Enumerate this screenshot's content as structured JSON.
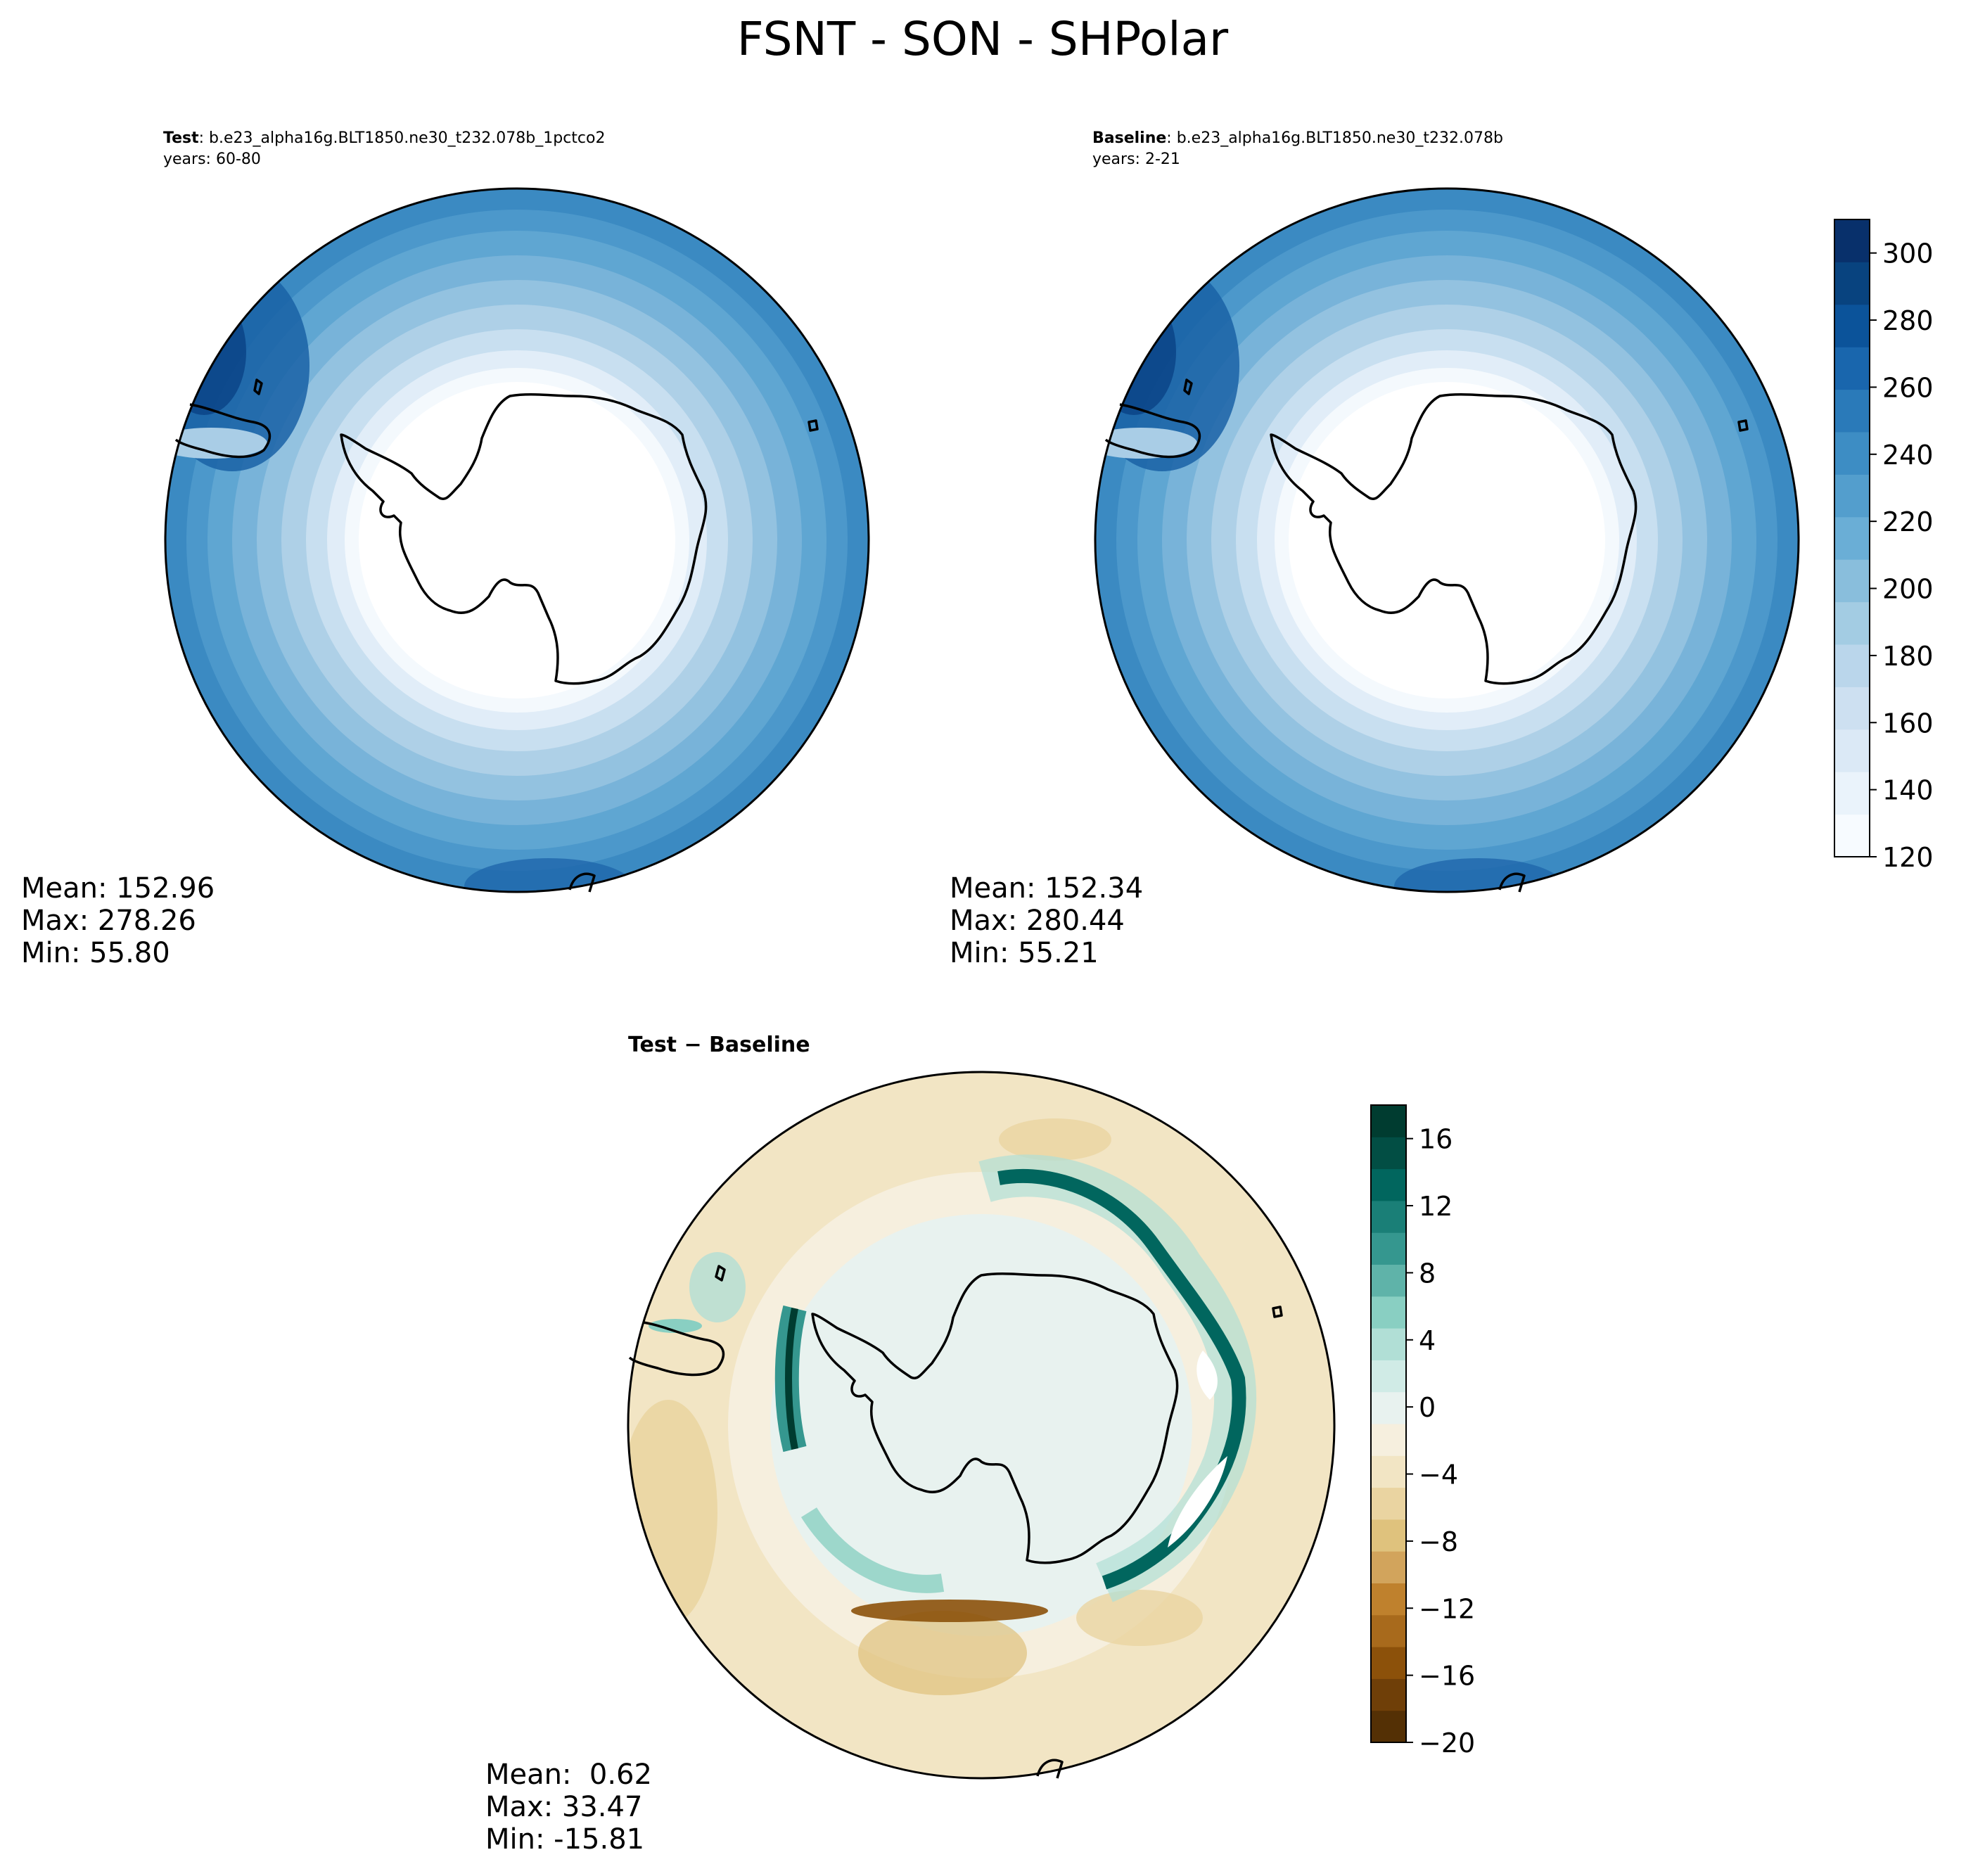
{
  "figure": {
    "title": "FSNT - SON - SHPolar"
  },
  "panels": [
    {
      "id": "test",
      "title_bold": "Test",
      "title_rest": ": b.e23_alpha16g.BLT1850.ne30_t232.078b_1pctco2",
      "years": "years: 60-80",
      "stats": {
        "mean": "Mean: 152.96",
        "max": "Max: 278.26",
        "min": "Min: 55.80"
      }
    },
    {
      "id": "baseline",
      "title_bold": "Baseline",
      "title_rest": ": b.e23_alpha16g.BLT1850.ne30_t232.078b",
      "years": "years: 2-21",
      "stats": {
        "mean": "Mean: 152.34",
        "max": "Max: 280.44",
        "min": "Min: 55.21"
      }
    },
    {
      "id": "diff",
      "title": "Test − Baseline",
      "stats": {
        "mean": "Mean:  0.62",
        "max": "Max: 33.47",
        "min": "Min: -15.81"
      }
    }
  ],
  "chart_data": [
    {
      "type": "heatmap",
      "projection": "south polar stereographic",
      "panel": "test",
      "colormap": "Blues",
      "stats": {
        "mean": 152.96,
        "max": 278.26,
        "min": 55.8
      }
    },
    {
      "type": "heatmap",
      "projection": "south polar stereographic",
      "panel": "baseline",
      "colormap": "Blues",
      "stats": {
        "mean": 152.34,
        "max": 280.44,
        "min": 55.21
      },
      "colorbar": {
        "range": [
          120,
          310
        ],
        "ticks": [
          "120",
          "140",
          "160",
          "180",
          "200",
          "220",
          "240",
          "260",
          "280",
          "300"
        ],
        "colors": [
          "#f7fbff",
          "#eaf3fb",
          "#dbe9f6",
          "#cde0f1",
          "#bad6eb",
          "#a3cce3",
          "#89bedc",
          "#6aaed6",
          "#539ecd",
          "#3d8dc4",
          "#2a7ab9",
          "#1966ad",
          "#0b539a",
          "#08437f",
          "#08306b"
        ]
      }
    },
    {
      "type": "heatmap",
      "projection": "south polar stereographic",
      "panel": "diff",
      "colormap": "BrBG",
      "stats": {
        "mean": 0.62,
        "max": 33.47,
        "min": -15.81
      },
      "colorbar": {
        "range": [
          -20,
          18
        ],
        "ticks": [
          "−20",
          "−16",
          "−12",
          "−8",
          "−4",
          "0",
          "4",
          "8",
          "12",
          "16"
        ],
        "colors": [
          "#543005",
          "#6f3f08",
          "#8c510a",
          "#a86a1c",
          "#bf812d",
          "#d2a45c",
          "#dfc27d",
          "#ead4a1",
          "#f2e5c4",
          "#f6efde",
          "#e8f2ef",
          "#d0ebe6",
          "#b1dfd6",
          "#89cfc2",
          "#5fb3a9",
          "#35978f",
          "#1a7f77",
          "#01665e",
          "#024e44",
          "#003c30"
        ]
      }
    }
  ]
}
